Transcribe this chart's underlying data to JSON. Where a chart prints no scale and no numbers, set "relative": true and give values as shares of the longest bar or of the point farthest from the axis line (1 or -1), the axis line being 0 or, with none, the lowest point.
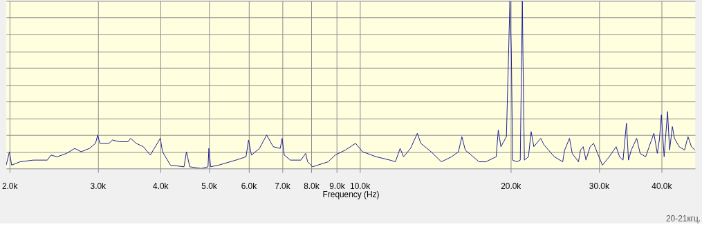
{
  "chart_data": {
    "type": "line",
    "relative": true,
    "xlabel": "Frequency (Hz)",
    "log": "x",
    "grid": true,
    "marker": "none",
    "line_style": "solid",
    "xlim": [
      1970,
      46700
    ],
    "xticks": [
      {
        "value": 2000,
        "label": "2.0k"
      },
      {
        "value": 3000,
        "label": "3.0k"
      },
      {
        "value": 4000,
        "label": "4.0k"
      },
      {
        "value": 5000,
        "label": "5.0k"
      },
      {
        "value": 6000,
        "label": "6.0k"
      },
      {
        "value": 7000,
        "label": "7.0k"
      },
      {
        "value": 8000,
        "label": "8.0k"
      },
      {
        "value": 9000,
        "label": "9.0k"
      },
      {
        "value": 10000,
        "label": "10.0k"
      },
      {
        "value": 20000,
        "label": "20.0k"
      },
      {
        "value": 30000,
        "label": "30.0k"
      },
      {
        "value": 40000,
        "label": "40.0k"
      }
    ],
    "annotations": [
      "20-21кгц."
    ],
    "series": [
      {
        "color": "#1c1c96",
        "x": [
          1970,
          2000,
          2020,
          2100,
          2230,
          2380,
          2420,
          2490,
          2600,
          2700,
          2780,
          2890,
          2970,
          3000,
          3030,
          3160,
          3210,
          3310,
          3450,
          3490,
          3580,
          3700,
          3820,
          4000,
          4040,
          4190,
          4460,
          4510,
          4580,
          4830,
          4980,
          5000,
          5040,
          5230,
          5660,
          5930,
          6000,
          6080,
          6310,
          6520,
          6720,
          6940,
          7000,
          7070,
          7270,
          7630,
          7800,
          7870,
          8050,
          8650,
          8930,
          9360,
          9810,
          10130,
          10790,
          11490,
          11780,
          12040,
          12230,
          12630,
          13030,
          13240,
          13880,
          14550,
          15250,
          15740,
          15990,
          16240,
          17300,
          17850,
          18720,
          18900,
          19130,
          19620,
          19810,
          19940,
          20070,
          20190,
          20580,
          20910,
          21040,
          21110,
          21170,
          21310,
          21710,
          21980,
          22260,
          22970,
          23330,
          24460,
          25410,
          25640,
          26220,
          26550,
          27320,
          27580,
          27920,
          28280,
          28820,
          29280,
          29740,
          30500,
          31470,
          32480,
          33000,
          33530,
          34060,
          34380,
          34820,
          35700,
          36270,
          37200,
          38630,
          39250,
          39620,
          39990,
          40500,
          41140,
          41530,
          42060,
          42460,
          43400,
          44480,
          45190,
          45910,
          46670
        ],
        "values": [
          0.02,
          0.1,
          0.02,
          0.04,
          0.05,
          0.05,
          0.08,
          0.07,
          0.09,
          0.12,
          0.1,
          0.12,
          0.15,
          0.2,
          0.15,
          0.15,
          0.17,
          0.16,
          0.16,
          0.18,
          0.15,
          0.13,
          0.08,
          0.18,
          0.1,
          0.02,
          0.01,
          0.1,
          0.01,
          0.0,
          0.01,
          0.12,
          0.01,
          0.02,
          0.05,
          0.07,
          0.17,
          0.08,
          0.12,
          0.2,
          0.13,
          0.12,
          0.18,
          0.08,
          0.05,
          0.05,
          0.09,
          0.04,
          0.01,
          0.04,
          0.08,
          0.11,
          0.15,
          0.1,
          0.07,
          0.05,
          0.04,
          0.12,
          0.07,
          0.12,
          0.21,
          0.15,
          0.1,
          0.04,
          0.07,
          0.1,
          0.19,
          0.11,
          0.04,
          0.04,
          0.07,
          0.23,
          0.13,
          0.19,
          0.67,
          1,
          0.69,
          0.05,
          0.04,
          0.05,
          0.67,
          1,
          0.67,
          0.05,
          0.07,
          0.22,
          0.13,
          0.18,
          0.14,
          0.07,
          0.04,
          0.11,
          0.18,
          0.09,
          0.04,
          0.11,
          0.13,
          0.05,
          0.13,
          0.15,
          0.1,
          0.02,
          0.07,
          0.13,
          0.07,
          0.05,
          0.27,
          0.05,
          0.11,
          0.18,
          0.09,
          0.07,
          0.21,
          0.09,
          0.17,
          0.32,
          0.07,
          0.34,
          0.11,
          0.25,
          0.18,
          0.13,
          0.11,
          0.19,
          0.13,
          0.11
        ]
      }
    ]
  }
}
